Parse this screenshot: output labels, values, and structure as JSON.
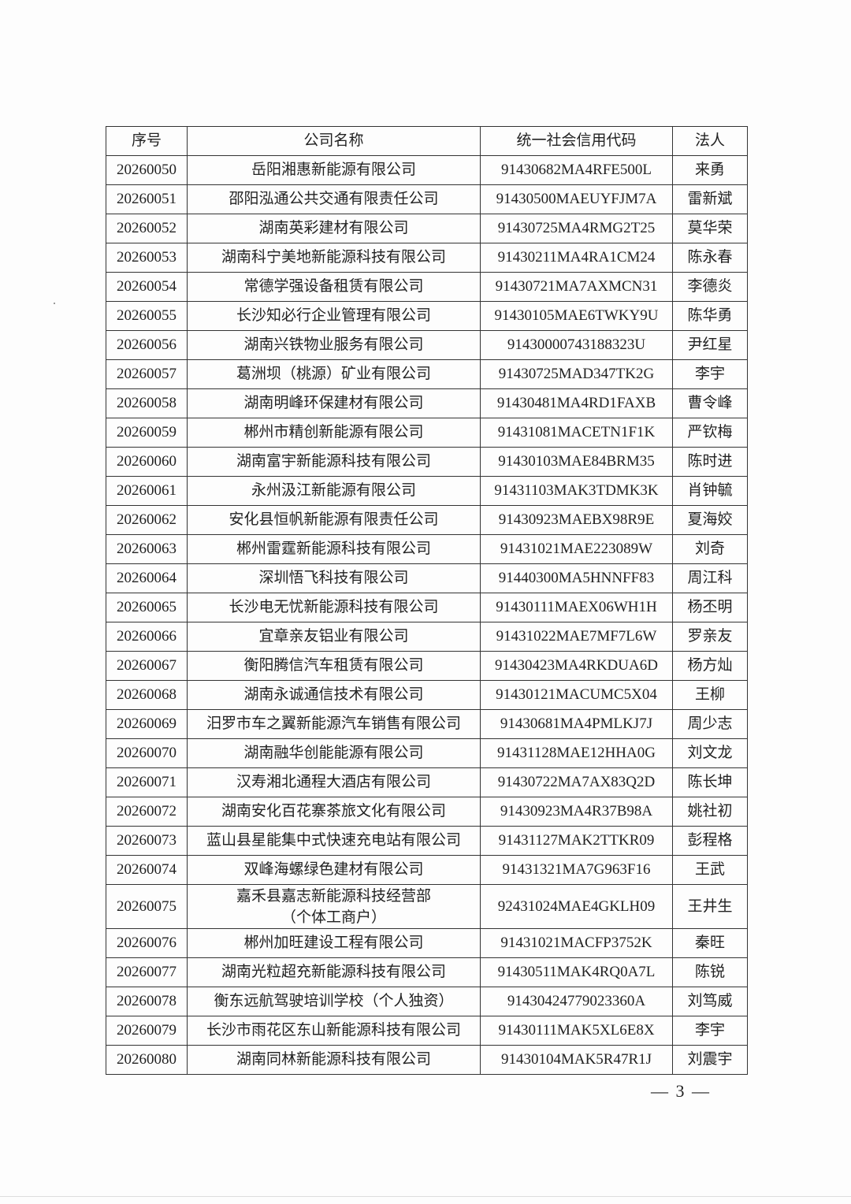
{
  "table": {
    "headers": [
      "序号",
      "公司名称",
      "统一社会信用代码",
      "法人"
    ],
    "rows": [
      [
        "20260050",
        "岳阳湘惠新能源有限公司",
        "91430682MA4RFE500L",
        "来勇"
      ],
      [
        "20260051",
        "邵阳泓通公共交通有限责任公司",
        "91430500MAEUYFJM7A",
        "雷新斌"
      ],
      [
        "20260052",
        "湖南英彩建材有限公司",
        "91430725MA4RMG2T25",
        "莫华荣"
      ],
      [
        "20260053",
        "湖南科宁美地新能源科技有限公司",
        "91430211MA4RA1CM24",
        "陈永春"
      ],
      [
        "20260054",
        "常德学强设备租赁有限公司",
        "91430721MA7AXMCN31",
        "李德炎"
      ],
      [
        "20260055",
        "长沙知必行企业管理有限公司",
        "91430105MAE6TWKY9U",
        "陈华勇"
      ],
      [
        "20260056",
        "湖南兴铁物业服务有限公司",
        "91430000743188323U",
        "尹红星"
      ],
      [
        "20260057",
        "葛洲坝（桃源）矿业有限公司",
        "91430725MAD347TK2G",
        "李宇"
      ],
      [
        "20260058",
        "湖南明峰环保建材有限公司",
        "91430481MA4RD1FAXB",
        "曹令峰"
      ],
      [
        "20260059",
        "郴州市精创新能源有限公司",
        "91431081MACETN1F1K",
        "严钦梅"
      ],
      [
        "20260060",
        "湖南富宇新能源科技有限公司",
        "91430103MAE84BRM35",
        "陈时进"
      ],
      [
        "20260061",
        "永州汲江新能源有限公司",
        "91431103MAK3TDMK3K",
        "肖钟毓"
      ],
      [
        "20260062",
        "安化县恒帆新能源有限责任公司",
        "91430923MAEBX98R9E",
        "夏海姣"
      ],
      [
        "20260063",
        "郴州雷霆新能源科技有限公司",
        "91431021MAE223089W",
        "刘奇"
      ],
      [
        "20260064",
        "深圳悟飞科技有限公司",
        "91440300MA5HNNFF83",
        "周江科"
      ],
      [
        "20260065",
        "长沙电无忧新能源科技有限公司",
        "91430111MAEX06WH1H",
        "杨丕明"
      ],
      [
        "20260066",
        "宜章亲友铝业有限公司",
        "91431022MAE7MF7L6W",
        "罗亲友"
      ],
      [
        "20260067",
        "衡阳腾信汽车租赁有限公司",
        "91430423MA4RKDUA6D",
        "杨方灿"
      ],
      [
        "20260068",
        "湖南永诚通信技术有限公司",
        "91430121MACUMC5X04",
        "王柳"
      ],
      [
        "20260069",
        "汨罗市车之翼新能源汽车销售有限公司",
        "91430681MA4PMLKJ7J",
        "周少志"
      ],
      [
        "20260070",
        "湖南融华创能能源有限公司",
        "91431128MAE12HHA0G",
        "刘文龙"
      ],
      [
        "20260071",
        "汉寿湘北通程大酒店有限公司",
        "91430722MA7AX83Q2D",
        "陈长坤"
      ],
      [
        "20260072",
        "湖南安化百花寨茶旅文化有限公司",
        "91430923MA4R37B98A",
        "姚社初"
      ],
      [
        "20260073",
        "蓝山县星能集中式快速充电站有限公司",
        "91431127MAK2TTKR09",
        "彭程格"
      ],
      [
        "20260074",
        "双峰海螺绿色建材有限公司",
        "91431321MA7G963F16",
        "王武"
      ],
      [
        "20260075",
        "嘉禾县嘉志新能源科技经营部\n（个体工商户）",
        "92431024MAE4GKLH09",
        "王井生"
      ],
      [
        "20260076",
        "郴州加旺建设工程有限公司",
        "91431021MACFP3752K",
        "秦旺"
      ],
      [
        "20260077",
        "湖南光粒超充新能源科技有限公司",
        "91430511MAK4RQ0A7L",
        "陈锐"
      ],
      [
        "20260078",
        "衡东远航驾驶培训学校（个人独资）",
        "91430424779023360A",
        "刘笃威"
      ],
      [
        "20260079",
        "长沙市雨花区东山新能源科技有限公司",
        "91430111MAK5XL6E8X",
        "李宇"
      ],
      [
        "20260080",
        "湖南同林新能源科技有限公司",
        "91430104MAK5R47R1J",
        "刘震宇"
      ]
    ]
  },
  "footer": {
    "page_number": "— 3 —"
  }
}
